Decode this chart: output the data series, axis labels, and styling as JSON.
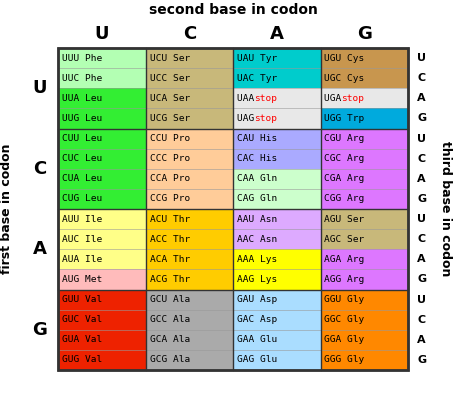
{
  "title_top": "second base in codon",
  "title_left": "first base in codon",
  "title_right": "third base in codon",
  "col_headers": [
    "U",
    "C",
    "A",
    "G"
  ],
  "row_headers": [
    "U",
    "C",
    "A",
    "G"
  ],
  "third_base_labels": [
    "U",
    "C",
    "A",
    "G"
  ],
  "cells": [
    {
      "row": 0,
      "col": 0,
      "lines": [
        [
          "UUU",
          "Phe"
        ],
        [
          "UUC",
          "Phe"
        ],
        [
          "UUA",
          "Leu"
        ],
        [
          "UUG",
          "Leu"
        ]
      ],
      "bg": [
        "#b3ffb3",
        "#b3ffb3",
        "#33ee33",
        "#33ee33"
      ],
      "stop": [
        false,
        false,
        false,
        false
      ]
    },
    {
      "row": 0,
      "col": 1,
      "lines": [
        [
          "UCU",
          "Ser"
        ],
        [
          "UCC",
          "Ser"
        ],
        [
          "UCA",
          "Ser"
        ],
        [
          "UCG",
          "Ser"
        ]
      ],
      "bg": [
        "#c8b87a",
        "#c8b87a",
        "#c8b87a",
        "#c8b87a"
      ],
      "stop": [
        false,
        false,
        false,
        false
      ]
    },
    {
      "row": 0,
      "col": 2,
      "lines": [
        [
          "UAU",
          "Tyr"
        ],
        [
          "UAC",
          "Tyr"
        ],
        [
          "UAA",
          "stop"
        ],
        [
          "UAG",
          "stop"
        ]
      ],
      "bg": [
        "#00cccc",
        "#00cccc",
        "#e8e8e8",
        "#e8e8e8"
      ],
      "stop": [
        false,
        false,
        true,
        true
      ]
    },
    {
      "row": 0,
      "col": 3,
      "lines": [
        [
          "UGU",
          "Cys"
        ],
        [
          "UGC",
          "Cys"
        ],
        [
          "UGA",
          "stop"
        ],
        [
          "UGG",
          "Trp"
        ]
      ],
      "bg": [
        "#c8964e",
        "#c8964e",
        "#e8e8e8",
        "#00aadd"
      ],
      "stop": [
        false,
        false,
        true,
        false
      ]
    },
    {
      "row": 1,
      "col": 0,
      "lines": [
        [
          "CUU",
          "Leu"
        ],
        [
          "CUC",
          "Leu"
        ],
        [
          "CUA",
          "Leu"
        ],
        [
          "CUG",
          "Leu"
        ]
      ],
      "bg": [
        "#33ee33",
        "#33ee33",
        "#33ee33",
        "#33ee33"
      ],
      "stop": [
        false,
        false,
        false,
        false
      ]
    },
    {
      "row": 1,
      "col": 1,
      "lines": [
        [
          "CCU",
          "Pro"
        ],
        [
          "CCC",
          "Pro"
        ],
        [
          "CCA",
          "Pro"
        ],
        [
          "CCG",
          "Pro"
        ]
      ],
      "bg": [
        "#ffcc99",
        "#ffcc99",
        "#ffcc99",
        "#ffcc99"
      ],
      "stop": [
        false,
        false,
        false,
        false
      ]
    },
    {
      "row": 1,
      "col": 2,
      "lines": [
        [
          "CAU",
          "His"
        ],
        [
          "CAC",
          "His"
        ],
        [
          "CAA",
          "Gln"
        ],
        [
          "CAG",
          "Gln"
        ]
      ],
      "bg": [
        "#aaaaff",
        "#aaaaff",
        "#ccffcc",
        "#ccffcc"
      ],
      "stop": [
        false,
        false,
        false,
        false
      ]
    },
    {
      "row": 1,
      "col": 3,
      "lines": [
        [
          "CGU",
          "Arg"
        ],
        [
          "CGC",
          "Arg"
        ],
        [
          "CGA",
          "Arg"
        ],
        [
          "CGG",
          "Arg"
        ]
      ],
      "bg": [
        "#dd77ff",
        "#dd77ff",
        "#dd77ff",
        "#dd77ff"
      ],
      "stop": [
        false,
        false,
        false,
        false
      ]
    },
    {
      "row": 2,
      "col": 0,
      "lines": [
        [
          "AUU",
          "Ile"
        ],
        [
          "AUC",
          "Ile"
        ],
        [
          "AUA",
          "Ile"
        ],
        [
          "AUG",
          "Met"
        ]
      ],
      "bg": [
        "#ffff88",
        "#ffff88",
        "#ffff88",
        "#ffbbbb"
      ],
      "stop": [
        false,
        false,
        false,
        false
      ]
    },
    {
      "row": 2,
      "col": 1,
      "lines": [
        [
          "ACU",
          "Thr"
        ],
        [
          "ACC",
          "Thr"
        ],
        [
          "ACA",
          "Thr"
        ],
        [
          "ACG",
          "Thr"
        ]
      ],
      "bg": [
        "#ffcc00",
        "#ffcc00",
        "#ffcc00",
        "#ffcc00"
      ],
      "stop": [
        false,
        false,
        false,
        false
      ]
    },
    {
      "row": 2,
      "col": 2,
      "lines": [
        [
          "AAU",
          "Asn"
        ],
        [
          "AAC",
          "Asn"
        ],
        [
          "AAA",
          "Lys"
        ],
        [
          "AAG",
          "Lys"
        ]
      ],
      "bg": [
        "#ddaaff",
        "#ddaaff",
        "#ffff00",
        "#ffff00"
      ],
      "stop": [
        false,
        false,
        false,
        false
      ]
    },
    {
      "row": 2,
      "col": 3,
      "lines": [
        [
          "AGU",
          "Ser"
        ],
        [
          "AGC",
          "Ser"
        ],
        [
          "AGA",
          "Arg"
        ],
        [
          "AGG",
          "Arg"
        ]
      ],
      "bg": [
        "#c8b87a",
        "#c8b87a",
        "#dd77ff",
        "#dd77ff"
      ],
      "stop": [
        false,
        false,
        false,
        false
      ]
    },
    {
      "row": 3,
      "col": 0,
      "lines": [
        [
          "GUU",
          "Val"
        ],
        [
          "GUC",
          "Val"
        ],
        [
          "GUA",
          "Val"
        ],
        [
          "GUG",
          "Val"
        ]
      ],
      "bg": [
        "#ee2200",
        "#ee2200",
        "#ee2200",
        "#ee2200"
      ],
      "stop": [
        false,
        false,
        false,
        false
      ]
    },
    {
      "row": 3,
      "col": 1,
      "lines": [
        [
          "GCU",
          "Ala"
        ],
        [
          "GCC",
          "Ala"
        ],
        [
          "GCA",
          "Ala"
        ],
        [
          "GCG",
          "Ala"
        ]
      ],
      "bg": [
        "#aaaaaa",
        "#aaaaaa",
        "#aaaaaa",
        "#aaaaaa"
      ],
      "stop": [
        false,
        false,
        false,
        false
      ]
    },
    {
      "row": 3,
      "col": 2,
      "lines": [
        [
          "GAU",
          "Asp"
        ],
        [
          "GAC",
          "Asp"
        ],
        [
          "GAA",
          "Glu"
        ],
        [
          "GAG",
          "Glu"
        ]
      ],
      "bg": [
        "#aaddff",
        "#aaddff",
        "#aaddff",
        "#aaddff"
      ],
      "stop": [
        false,
        false,
        false,
        false
      ]
    },
    {
      "row": 3,
      "col": 3,
      "lines": [
        [
          "GGU",
          "Gly"
        ],
        [
          "GGC",
          "Gly"
        ],
        [
          "GGA",
          "Gly"
        ],
        [
          "GGG",
          "Gly"
        ]
      ],
      "bg": [
        "#ff8800",
        "#ff8800",
        "#ff8800",
        "#ff8800"
      ],
      "stop": [
        false,
        false,
        false,
        false
      ]
    }
  ]
}
